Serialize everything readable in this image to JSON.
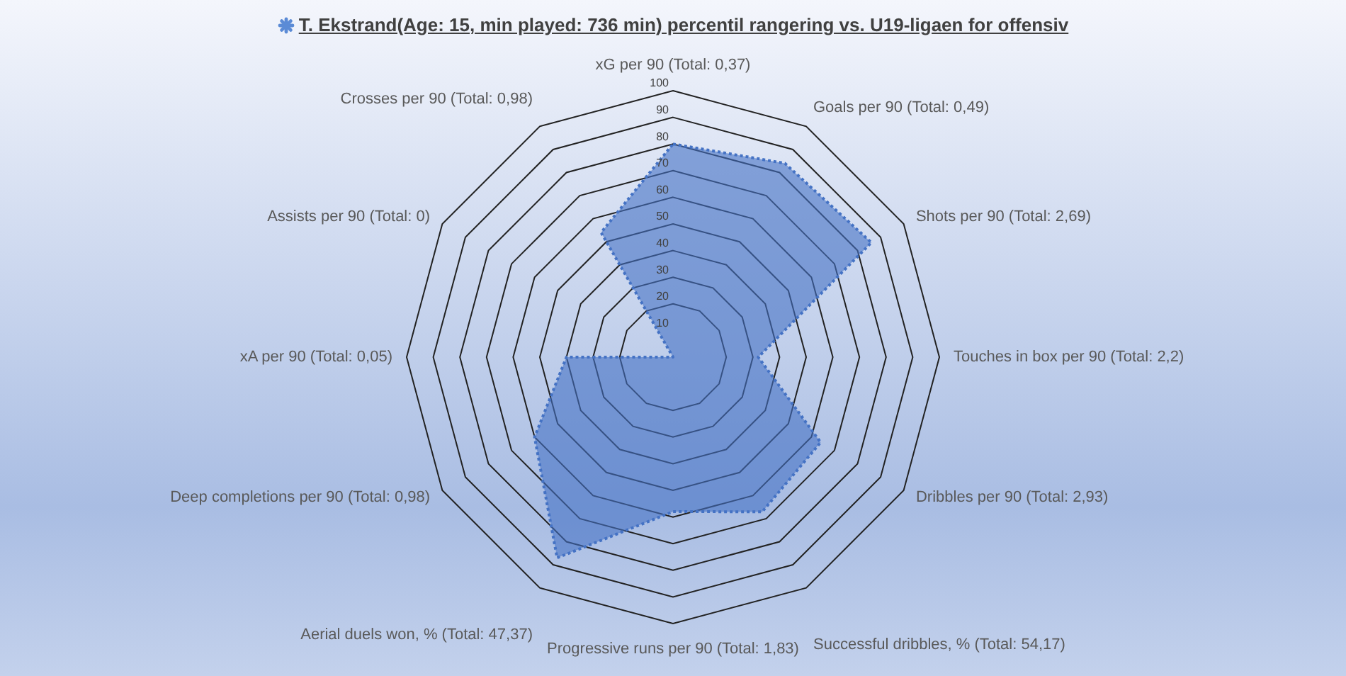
{
  "chart_data": {
    "type": "radar",
    "title": "T. Ekstrand(Age: 15, min played: 736 min) percentil rangering vs. U19-ligaen for offensiv",
    "categories": [
      "xG per 90 (Total: 0,37)",
      "Goals per 90 (Total: 0,49)",
      "Shots per 90 (Total: 2,69)",
      "Touches in box per 90 (Total: 2,2)",
      "Dribbles per 90 (Total: 2,93)",
      "Successful dribbles, % (Total: 54,17)",
      "Progressive runs per 90 (Total: 1,83)",
      "Aerial duels won, % (Total: 47,37)",
      "Deep completions per 90 (Total: 0,98)",
      "xA per 90 (Total: 0,05)",
      "Assists per 90 (Total: 0)",
      "Crosses per 90 (Total: 0,98)"
    ],
    "series": [
      {
        "color": "#4472c4",
        "values": [
          80,
          84,
          86,
          32,
          64,
          67,
          58,
          87,
          60,
          40,
          0,
          54
        ]
      }
    ],
    "ylim": [
      0,
      100
    ],
    "yticks": [
      10,
      20,
      30,
      40,
      50,
      60,
      70,
      80,
      90,
      100
    ],
    "grid": true,
    "legend": false,
    "marker": "none",
    "line_style": "dotted"
  }
}
